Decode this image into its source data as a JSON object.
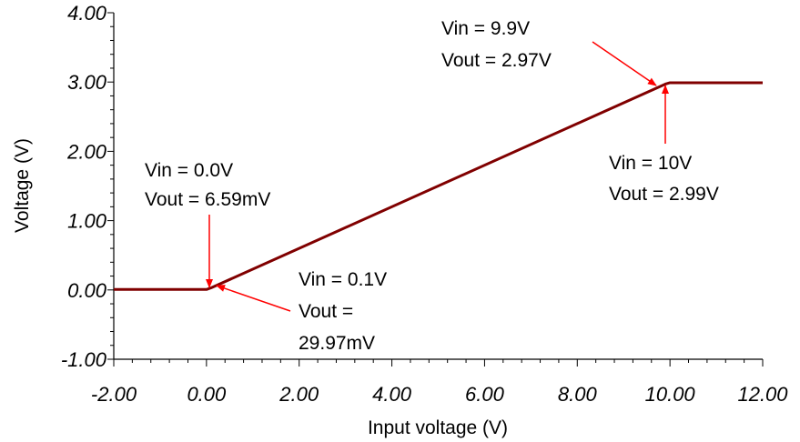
{
  "chart_data": {
    "type": "line",
    "xlabel": "Input voltage (V)",
    "ylabel": "Voltage (V)",
    "xlim": [
      -2,
      12
    ],
    "ylim": [
      -1,
      4
    ],
    "x_ticks": [
      "-2.00",
      "0.00",
      "2.00",
      "4.00",
      "6.00",
      "8.00",
      "10.00",
      "12.00"
    ],
    "y_ticks": [
      "-1.00",
      "0.00",
      "1.00",
      "2.00",
      "3.00",
      "4.00"
    ],
    "grid": false,
    "series": [
      {
        "color": "#800000",
        "x": [
          -2.0,
          0.0,
          0.1,
          9.9,
          10.0,
          12.0
        ],
        "y": [
          0.00659,
          0.00659,
          0.02997,
          2.97,
          2.99,
          2.99
        ]
      }
    ],
    "annotations": [
      {
        "lines": [
          "Vin = 0.0V",
          "Vout = 6.59mV"
        ],
        "point": [
          0.0,
          0.00659
        ]
      },
      {
        "lines": [
          "Vin = 0.1V",
          "Vout =",
          "29.97mV"
        ],
        "point": [
          0.1,
          0.02997
        ]
      },
      {
        "lines": [
          "Vin = 9.9V",
          "Vout = 2.97V"
        ],
        "point": [
          9.9,
          2.97
        ]
      },
      {
        "lines": [
          "Vin = 10V",
          "Vout = 2.99V"
        ],
        "point": [
          10.0,
          2.99
        ]
      }
    ]
  }
}
